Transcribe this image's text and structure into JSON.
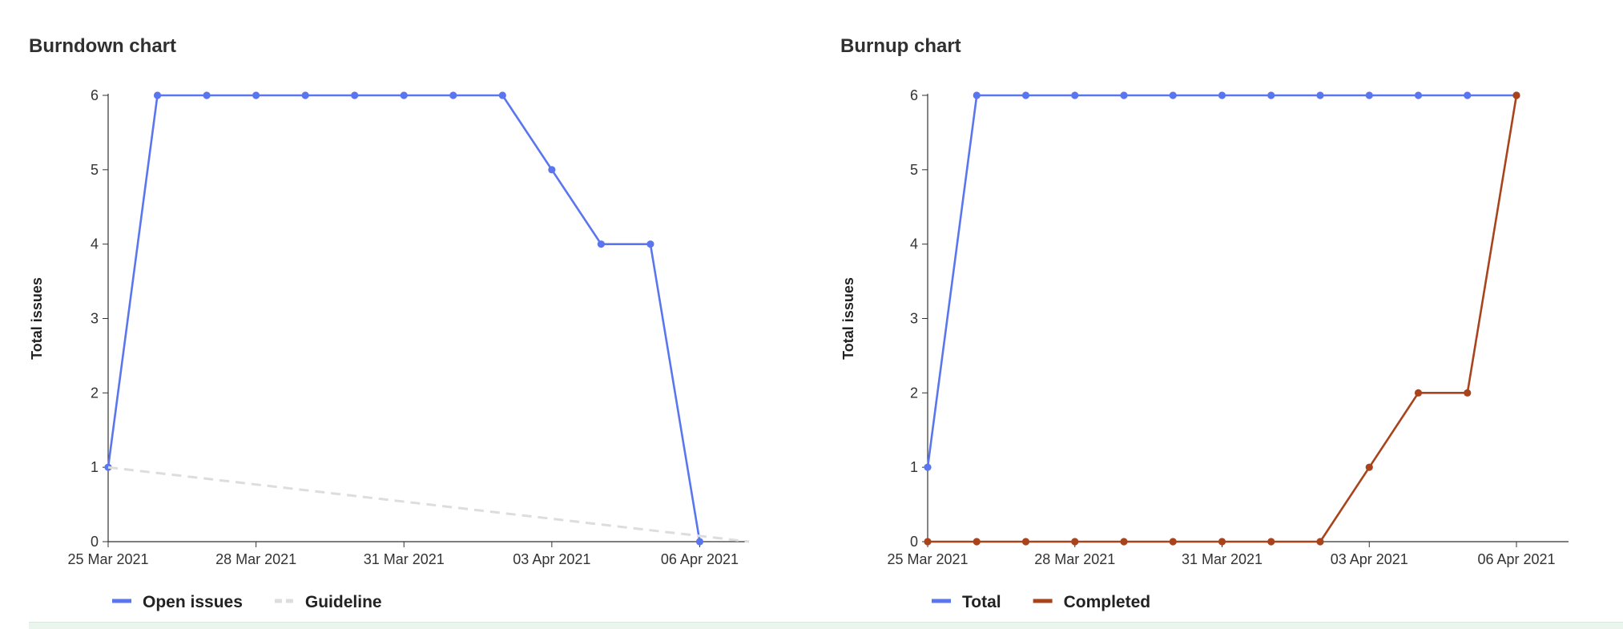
{
  "colors": {
    "blue": "#5a76ef",
    "brown": "#a8431c",
    "guideline": "#dddddd",
    "axis": "#333333",
    "strip": "#ecf4ee"
  },
  "chart_data": [
    {
      "type": "line",
      "title": "Burndown chart",
      "ylabel": "Total issues",
      "xlabel": "",
      "x": [
        "25 Mar 2021",
        "26 Mar 2021",
        "27 Mar 2021",
        "28 Mar 2021",
        "29 Mar 2021",
        "30 Mar 2021",
        "31 Mar 2021",
        "01 Apr 2021",
        "02 Apr 2021",
        "03 Apr 2021",
        "04 Apr 2021",
        "05 Apr 2021",
        "06 Apr 2021"
      ],
      "x_tick_labels": [
        "25 Mar 2021",
        "28 Mar 2021",
        "31 Mar 2021",
        "03 Apr 2021",
        "06 Apr 2021"
      ],
      "x_range": [
        "25 Mar 2021",
        "07 Apr 2021"
      ],
      "ylim": [
        0,
        6
      ],
      "y_ticks": [
        0,
        1,
        2,
        3,
        4,
        5,
        6
      ],
      "grid": false,
      "legend_position": "bottom-left",
      "series": [
        {
          "name": "Open issues",
          "color": "#5a76ef",
          "style": "solid",
          "markers": true,
          "values": [
            1,
            6,
            6,
            6,
            6,
            6,
            6,
            6,
            6,
            5,
            4,
            4,
            0
          ]
        },
        {
          "name": "Guideline",
          "color": "#dddddd",
          "style": "dashed",
          "markers": false,
          "x": [
            "25 Mar 2021",
            "07 Apr 2021"
          ],
          "values": [
            1,
            0
          ]
        }
      ]
    },
    {
      "type": "line",
      "title": "Burnup chart",
      "ylabel": "Total issues",
      "xlabel": "",
      "x": [
        "25 Mar 2021",
        "26 Mar 2021",
        "27 Mar 2021",
        "28 Mar 2021",
        "29 Mar 2021",
        "30 Mar 2021",
        "31 Mar 2021",
        "01 Apr 2021",
        "02 Apr 2021",
        "03 Apr 2021",
        "04 Apr 2021",
        "05 Apr 2021",
        "06 Apr 2021"
      ],
      "x_tick_labels": [
        "25 Mar 2021",
        "28 Mar 2021",
        "31 Mar 2021",
        "03 Apr 2021",
        "06 Apr 2021"
      ],
      "x_range": [
        "25 Mar 2021",
        "06 Apr 2021"
      ],
      "ylim": [
        0,
        6
      ],
      "y_ticks": [
        0,
        1,
        2,
        3,
        4,
        5,
        6
      ],
      "grid": false,
      "legend_position": "bottom-left",
      "series": [
        {
          "name": "Total",
          "color": "#5a76ef",
          "style": "solid",
          "markers": true,
          "values": [
            1,
            6,
            6,
            6,
            6,
            6,
            6,
            6,
            6,
            6,
            6,
            6,
            6
          ]
        },
        {
          "name": "Completed",
          "color": "#a8431c",
          "style": "solid",
          "markers": true,
          "values": [
            0,
            0,
            0,
            0,
            0,
            0,
            0,
            0,
            0,
            1,
            2,
            2,
            6
          ]
        }
      ]
    }
  ]
}
